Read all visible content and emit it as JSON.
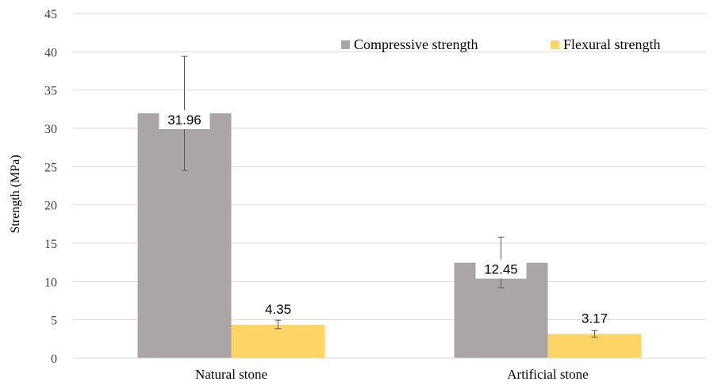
{
  "chart_data": {
    "type": "bar",
    "title": "",
    "xlabel": "",
    "ylabel": "Strength (MPa)",
    "ylim": [
      0,
      45
    ],
    "yticks": [
      0,
      5,
      10,
      15,
      20,
      25,
      30,
      35,
      40,
      45
    ],
    "grid": true,
    "legend_position": "top-right",
    "categories": [
      "Natural stone",
      "Artificial stone"
    ],
    "series": [
      {
        "name": "Compressive strength",
        "color": "#aaa6a6",
        "values": [
          31.96,
          12.45
        ],
        "error_low": [
          24.5,
          9.2
        ],
        "error_high": [
          39.4,
          15.8
        ],
        "data_labels": [
          "31.96",
          "12.45"
        ]
      },
      {
        "name": "Flexural strength",
        "color": "#fdd566",
        "values": [
          4.35,
          3.17
        ],
        "error_low": [
          3.85,
          2.75
        ],
        "error_high": [
          4.95,
          3.6
        ],
        "data_labels": [
          "4.35",
          "3.17"
        ]
      }
    ]
  }
}
